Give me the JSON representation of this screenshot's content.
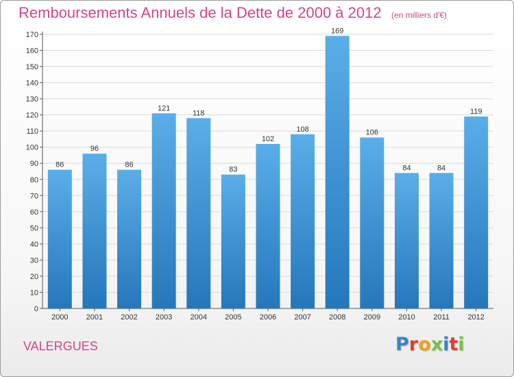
{
  "title": "Remboursements Annuels de la Dette de 2000 à 2012",
  "subtitle": "(en milliers d'€)",
  "city": "VALERGUES",
  "logo": {
    "letters": [
      "P",
      "r",
      "o",
      "x",
      "i",
      "t",
      "i"
    ],
    "colors": [
      "#3b84c9",
      "#e23e2a",
      "#f0a020",
      "#7cc144",
      "#3b84c9",
      "#e23e2a",
      "#7cc144"
    ]
  },
  "colors": {
    "accent": "#d2448c",
    "bar_top": "#5aaee8",
    "bar_bottom": "#2577bb"
  },
  "chart_data": {
    "type": "bar",
    "categories": [
      "2000",
      "2001",
      "2002",
      "2003",
      "2004",
      "2005",
      "2006",
      "2007",
      "2008",
      "2009",
      "2010",
      "2011",
      "2012"
    ],
    "values": [
      86,
      96,
      86,
      121,
      118,
      83,
      102,
      108,
      169,
      106,
      84,
      84,
      119
    ],
    "ylim": [
      0,
      170
    ],
    "yticks": [
      0,
      10,
      20,
      30,
      40,
      50,
      60,
      70,
      80,
      90,
      100,
      110,
      120,
      130,
      140,
      150,
      160,
      170
    ],
    "grid": true
  }
}
